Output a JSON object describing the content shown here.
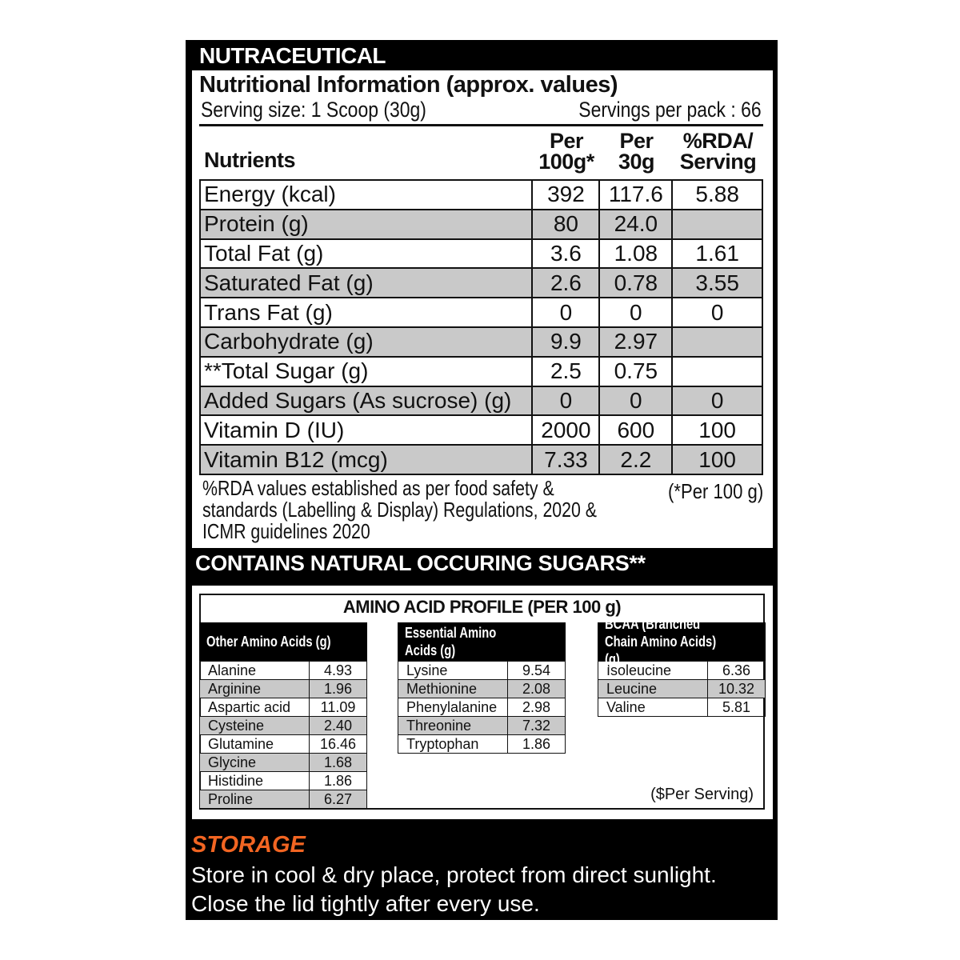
{
  "brand": "NUTRACEUTICAL",
  "title": "Nutritional Information (approx. values)",
  "serving_size": "Serving size: 1 Scoop (30g)",
  "servings_per_pack": "Servings per pack :  66",
  "headers": {
    "nutrients": "Nutrients",
    "per100_a": "Per",
    "per100_b": "100g*",
    "per30_a": "Per",
    "per30_b": "30g",
    "rda_a": "%RDA/",
    "rda_b": "Serving"
  },
  "rows": [
    {
      "name": "Energy (kcal)",
      "per100": "392",
      "per30": "117.6",
      "rda": "5.88"
    },
    {
      "name": "Protein (g)",
      "per100": "80",
      "per30": "24.0",
      "rda": ""
    },
    {
      "name": "Total Fat (g)",
      "per100": "3.6",
      "per30": "1.08",
      "rda": "1.61"
    },
    {
      "name": "Saturated Fat (g)",
      "per100": "2.6",
      "per30": "0.78",
      "rda": "3.55"
    },
    {
      "name": "Trans Fat (g)",
      "per100": "0",
      "per30": "0",
      "rda": "0"
    },
    {
      "name": "Carbohydrate (g)",
      "per100": "9.9",
      "per30": "2.97",
      "rda": ""
    },
    {
      "name": "**Total Sugar (g)",
      "per100": "2.5",
      "per30": "0.75",
      "rda": ""
    },
    {
      "name": "Added Sugars (As sucrose) (g)",
      "per100": "0",
      "per30": "0",
      "rda": "0"
    },
    {
      "name": "Vitamin D (IU)",
      "per100": "2000",
      "per30": "600",
      "rda": "100"
    },
    {
      "name": "Vitamin B12 (mcg)",
      "per100": "7.33",
      "per30": "2.2",
      "rda": "100"
    }
  ],
  "footnote": "%RDA values established as per food safety & standards (Labelling & Display) Regulations, 2020 & ICMR guidelines 2020",
  "per100_note": "(*Per 100 g)",
  "contains": "CONTAINS NATURAL OCCURING SUGARS**",
  "amino": {
    "title": "AMINO ACID PROFILE (PER 100 g)",
    "groups": [
      {
        "header": "Other Amino Acids (g)",
        "items": [
          [
            "Alanine",
            "4.93"
          ],
          [
            "Arginine",
            "1.96"
          ],
          [
            "Aspartic acid",
            "11.09"
          ],
          [
            "Cysteine",
            "2.40"
          ],
          [
            "Glutamine",
            "16.46"
          ],
          [
            "Glycine",
            "1.68"
          ],
          [
            "Histidine",
            "1.86"
          ],
          [
            "Proline",
            "6.27"
          ]
        ]
      },
      {
        "header": "Essential Amino Acids (g)",
        "items": [
          [
            "Lysine",
            "9.54"
          ],
          [
            "Methionine",
            "2.08"
          ],
          [
            "Phenylalanine",
            "2.98"
          ],
          [
            "Threonine",
            "7.32"
          ],
          [
            "Tryptophan",
            "1.86"
          ]
        ]
      },
      {
        "header": "BCAA (Branched Chain Amino Acids) (g)",
        "items": [
          [
            "Isoleucine",
            "6.36"
          ],
          [
            "Leucine",
            "10.32"
          ],
          [
            "Valine",
            "5.81"
          ]
        ]
      }
    ],
    "per_serving_note": "($Per Serving)"
  },
  "storage": {
    "title": "STORAGE",
    "line1": "Store in cool & dry place, protect from direct sunlight.",
    "line2": "Close the lid tightly after every use."
  },
  "colors": {
    "storage_accent": "#f26522",
    "shaded_row": "#c9c9c9"
  }
}
